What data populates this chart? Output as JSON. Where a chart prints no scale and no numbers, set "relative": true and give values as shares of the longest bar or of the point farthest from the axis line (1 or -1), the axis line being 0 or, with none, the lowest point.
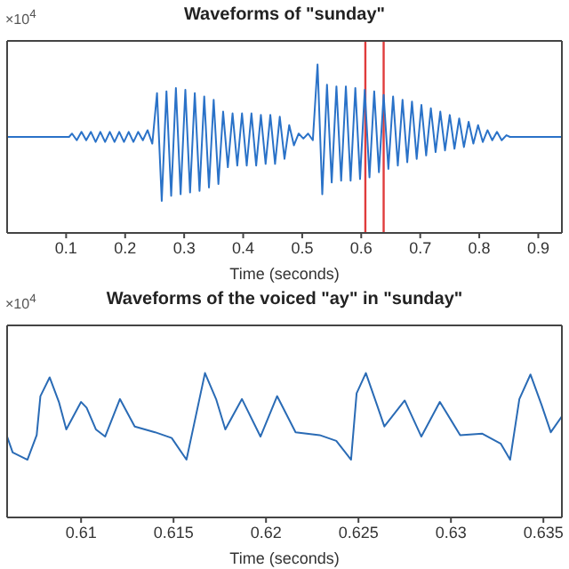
{
  "chart_data": [
    {
      "type": "line",
      "title": "Waveforms of \"sunday\"",
      "xlabel": "Time (seconds)",
      "relative": true,
      "annotations": [
        "×10$^{4}$"
      ],
      "xlim": [
        0,
        0.94
      ],
      "xticks": [
        0.1,
        0.2,
        0.3,
        0.4,
        0.5,
        0.6,
        0.7,
        0.8,
        0.9
      ],
      "ref_lines": [
        {
          "axis": "x",
          "value": 0.607,
          "color": "#e03c3c"
        },
        {
          "axis": "x",
          "value": 0.638,
          "color": "#e03c3c"
        }
      ],
      "series": [
        {
          "color": "#2a72c8",
          "x": [
            0,
            0.105,
            0.11,
            0.118,
            0.126,
            0.134,
            0.142,
            0.15,
            0.158,
            0.166,
            0.174,
            0.182,
            0.19,
            0.198,
            0.206,
            0.214,
            0.222,
            0.23,
            0.238,
            0.246,
            0.254,
            0.262,
            0.27,
            0.278,
            0.286,
            0.294,
            0.302,
            0.31,
            0.318,
            0.326,
            0.334,
            0.342,
            0.35,
            0.358,
            0.366,
            0.374,
            0.382,
            0.39,
            0.398,
            0.406,
            0.414,
            0.422,
            0.43,
            0.438,
            0.446,
            0.454,
            0.462,
            0.47,
            0.478,
            0.486,
            0.494,
            0.502,
            0.51,
            0.518,
            0.526,
            0.534,
            0.542,
            0.55,
            0.558,
            0.566,
            0.574,
            0.582,
            0.59,
            0.598,
            0.606,
            0.614,
            0.622,
            0.63,
            0.638,
            0.646,
            0.654,
            0.662,
            0.67,
            0.678,
            0.686,
            0.694,
            0.702,
            0.71,
            0.718,
            0.726,
            0.734,
            0.742,
            0.75,
            0.758,
            0.766,
            0.774,
            0.782,
            0.79,
            0.798,
            0.806,
            0.814,
            0.822,
            0.83,
            0.838,
            0.846,
            0.852,
            0.94
          ],
          "values": [
            0.57,
            0.57,
            0.59,
            0.55,
            0.6,
            0.55,
            0.6,
            0.54,
            0.6,
            0.54,
            0.6,
            0.54,
            0.6,
            0.54,
            0.6,
            0.54,
            0.6,
            0.55,
            0.61,
            0.53,
            0.83,
            0.19,
            0.84,
            0.22,
            0.86,
            0.23,
            0.85,
            0.24,
            0.83,
            0.25,
            0.81,
            0.27,
            0.79,
            0.29,
            0.72,
            0.39,
            0.71,
            0.4,
            0.71,
            0.4,
            0.71,
            0.4,
            0.7,
            0.41,
            0.7,
            0.41,
            0.69,
            0.44,
            0.64,
            0.52,
            0.59,
            0.56,
            0.59,
            0.55,
            1,
            0.23,
            0.88,
            0.3,
            0.87,
            0.31,
            0.87,
            0.31,
            0.86,
            0.32,
            0.85,
            0.33,
            0.84,
            0.36,
            0.82,
            0.38,
            0.81,
            0.4,
            0.79,
            0.42,
            0.78,
            0.44,
            0.76,
            0.46,
            0.74,
            0.48,
            0.72,
            0.49,
            0.7,
            0.5,
            0.68,
            0.51,
            0.66,
            0.53,
            0.64,
            0.54,
            0.61,
            0.55,
            0.6,
            0.55,
            0.58,
            0.57,
            0.57
          ]
        }
      ]
    },
    {
      "type": "line",
      "title": "Waveforms of the voiced \"ay\" in \"sunday\"",
      "xlabel": "Time (seconds)",
      "relative": true,
      "annotations": [
        "×10$^{4}$"
      ],
      "xlim": [
        0.606,
        0.636
      ],
      "xticks": [
        0.61,
        0.615,
        0.62,
        0.625,
        0.63,
        0.635
      ],
      "series": [
        {
          "color": "#2a6bb5",
          "x": [
            0.606,
            0.6063,
            0.6071,
            0.6076,
            0.6078,
            0.6083,
            0.6088,
            0.6092,
            0.61,
            0.6103,
            0.6108,
            0.6113,
            0.6121,
            0.6129,
            0.614,
            0.6149,
            0.6157,
            0.6167,
            0.6173,
            0.6178,
            0.6187,
            0.6197,
            0.6206,
            0.6216,
            0.6229,
            0.6238,
            0.6246,
            0.6249,
            0.6254,
            0.626,
            0.6264,
            0.6275,
            0.6284,
            0.6294,
            0.6305,
            0.6317,
            0.6327,
            0.6332,
            0.6337,
            0.6343,
            0.6349,
            0.6354,
            0.636
          ],
          "values": [
            0.56,
            0.45,
            0.4,
            0.57,
            0.84,
            0.97,
            0.8,
            0.61,
            0.8,
            0.76,
            0.61,
            0.56,
            0.82,
            0.63,
            0.59,
            0.55,
            0.4,
            1,
            0.82,
            0.61,
            0.82,
            0.56,
            0.84,
            0.59,
            0.57,
            0.53,
            0.4,
            0.86,
            1,
            0.78,
            0.63,
            0.81,
            0.56,
            0.8,
            0.57,
            0.58,
            0.51,
            0.4,
            0.82,
            0.99,
            0.78,
            0.59,
            0.7
          ]
        }
      ]
    }
  ]
}
